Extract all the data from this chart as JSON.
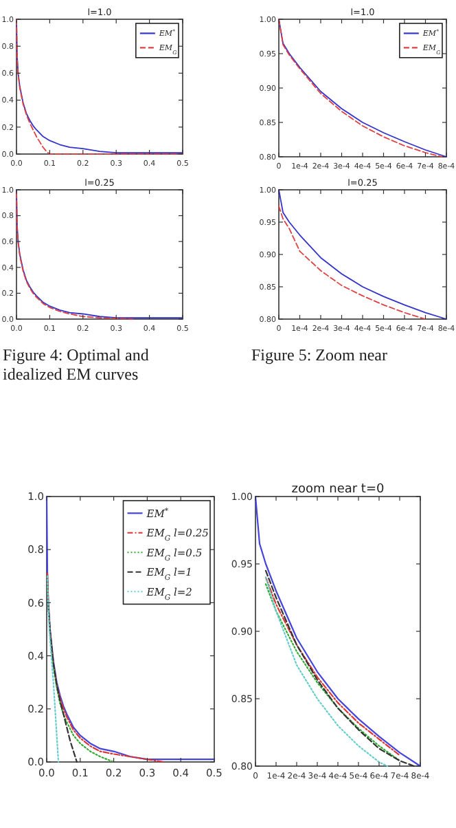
{
  "chart_data": [
    {
      "type": "line",
      "title": "l=1.0",
      "xlim": [
        0,
        0.5
      ],
      "ylim": [
        0,
        1
      ],
      "xticks": [
        {
          "value": 0,
          "label": "0.0"
        },
        0.1,
        0.2,
        0.3,
        0.4,
        0.5
      ],
      "yticks": [
        {
          "value": 0,
          "label": "0.0"
        },
        0.2,
        0.4,
        0.6,
        0.8,
        {
          "value": 1,
          "label": "1.0"
        }
      ],
      "legend": "top right",
      "series": [
        {
          "name": "EM$^{*}$",
          "color": "#3333cc",
          "line_style": "solid",
          "x": [
            0,
            0.002,
            0.005,
            0.01,
            0.02,
            0.03,
            0.04,
            0.05,
            0.06,
            0.08,
            0.1,
            0.13,
            0.16,
            0.2,
            0.25,
            0.3,
            0.4,
            0.5
          ],
          "values": [
            1.0,
            0.72,
            0.6,
            0.5,
            0.38,
            0.3,
            0.25,
            0.21,
            0.18,
            0.13,
            0.1,
            0.07,
            0.05,
            0.04,
            0.02,
            0.01,
            0.01,
            0.01
          ]
        },
        {
          "name": "EM$_{G}$",
          "color": "#e04040",
          "line_style": "dashed",
          "x": [
            0,
            0.002,
            0.005,
            0.01,
            0.02,
            0.03,
            0.04,
            0.05,
            0.06,
            0.07,
            0.08,
            0.09,
            0.1,
            0.5
          ],
          "values": [
            1.0,
            0.71,
            0.59,
            0.49,
            0.37,
            0.29,
            0.23,
            0.18,
            0.13,
            0.09,
            0.05,
            0.02,
            0.0,
            0.0
          ]
        }
      ]
    },
    {
      "type": "line",
      "title": "l=1.0",
      "xlim": [
        0,
        0.0008
      ],
      "ylim": [
        0.8,
        1
      ],
      "xticks": [
        0,
        {
          "value": 0.0001,
          "label": "1e-4"
        },
        {
          "value": 0.0002,
          "label": "2e-4"
        },
        {
          "value": 0.0003,
          "label": "3e-4"
        },
        {
          "value": 0.0004,
          "label": "4e-4"
        },
        {
          "value": 0.0005,
          "label": "5e-4"
        },
        {
          "value": 0.0006,
          "label": "6e-4"
        },
        {
          "value": 0.0007,
          "label": "7e-4"
        },
        {
          "value": 0.0008,
          "label": "8e-4"
        }
      ],
      "yticks": [
        {
          "value": 0.8,
          "label": "0.80"
        },
        0.85,
        {
          "value": 0.9,
          "label": "0.90"
        },
        0.95,
        {
          "value": 1,
          "label": "1.00"
        }
      ],
      "legend": "top right",
      "series": [
        {
          "name": "EM$^{*}$",
          "color": "#3333cc",
          "line_style": "solid",
          "x": [
            0,
            2e-05,
            5e-05,
            0.0001,
            0.0002,
            0.0003,
            0.0004,
            0.0005,
            0.0006,
            0.0007,
            0.0008
          ],
          "values": [
            1.0,
            0.965,
            0.95,
            0.93,
            0.895,
            0.87,
            0.85,
            0.835,
            0.822,
            0.81,
            0.8
          ]
        },
        {
          "name": "EM$_{G}$",
          "color": "#e04040",
          "line_style": "dashed",
          "x": [
            0,
            2e-05,
            5e-05,
            0.0001,
            0.0002,
            0.0003,
            0.0004,
            0.0005,
            0.0006,
            0.0007,
            0.00078
          ],
          "values": [
            1.0,
            0.963,
            0.948,
            0.928,
            0.892,
            0.866,
            0.845,
            0.829,
            0.816,
            0.806,
            0.8
          ]
        }
      ]
    },
    {
      "type": "line",
      "title": "l=0.25",
      "xlim": [
        0,
        0.5
      ],
      "ylim": [
        0,
        1
      ],
      "xticks": [
        {
          "value": 0,
          "label": "0.0"
        },
        0.1,
        0.2,
        0.3,
        0.4,
        0.5
      ],
      "yticks": [
        {
          "value": 0,
          "label": "0.0"
        },
        0.2,
        0.4,
        0.6,
        0.8,
        {
          "value": 1,
          "label": "1.0"
        }
      ],
      "annotations": [
        "Figure 4: Optimal and idealized EM curves"
      ],
      "series": [
        {
          "color": "#3333cc",
          "line_style": "solid",
          "x": [
            0,
            0.002,
            0.005,
            0.01,
            0.02,
            0.03,
            0.04,
            0.05,
            0.06,
            0.08,
            0.1,
            0.13,
            0.16,
            0.2,
            0.25,
            0.3,
            0.4,
            0.5
          ],
          "values": [
            1.0,
            0.72,
            0.6,
            0.5,
            0.38,
            0.3,
            0.25,
            0.21,
            0.18,
            0.13,
            0.1,
            0.07,
            0.05,
            0.04,
            0.02,
            0.01,
            0.01,
            0.01
          ]
        },
        {
          "color": "#e04040",
          "line_style": "dashed",
          "x": [
            0,
            0.002,
            0.005,
            0.01,
            0.02,
            0.03,
            0.04,
            0.05,
            0.06,
            0.08,
            0.1,
            0.13,
            0.16,
            0.2,
            0.25,
            0.35
          ],
          "values": [
            0.98,
            0.71,
            0.59,
            0.49,
            0.37,
            0.29,
            0.24,
            0.2,
            0.17,
            0.12,
            0.09,
            0.06,
            0.04,
            0.02,
            0.01,
            0.0
          ]
        }
      ]
    },
    {
      "type": "line",
      "title": "l=0.25",
      "xlim": [
        0,
        0.0008
      ],
      "ylim": [
        0.8,
        1
      ],
      "xticks": [
        0,
        {
          "value": 0.0001,
          "label": "1e-4"
        },
        {
          "value": 0.0002,
          "label": "2e-4"
        },
        {
          "value": 0.0003,
          "label": "3e-4"
        },
        {
          "value": 0.0004,
          "label": "4e-4"
        },
        {
          "value": 0.0005,
          "label": "5e-4"
        },
        {
          "value": 0.0006,
          "label": "6e-4"
        },
        {
          "value": 0.0007,
          "label": "7e-4"
        },
        {
          "value": 0.0008,
          "label": "8e-4"
        }
      ],
      "yticks": [
        {
          "value": 0.8,
          "label": "0.80"
        },
        0.85,
        {
          "value": 0.9,
          "label": "0.90"
        },
        0.95,
        {
          "value": 1,
          "label": "1.00"
        }
      ],
      "annotations": [
        "Figure 5: Zoom near"
      ],
      "series": [
        {
          "color": "#3333cc",
          "line_style": "solid",
          "x": [
            0,
            2e-05,
            5e-05,
            0.0001,
            0.0002,
            0.0003,
            0.0004,
            0.0005,
            0.0006,
            0.0007,
            0.0008
          ],
          "values": [
            1.0,
            0.965,
            0.95,
            0.93,
            0.895,
            0.87,
            0.85,
            0.835,
            0.822,
            0.81,
            0.8
          ]
        },
        {
          "color": "#e04040",
          "line_style": "dashed",
          "x": [
            0,
            2e-05,
            5e-05,
            0.0001,
            0.0002,
            0.0003,
            0.0004,
            0.0005,
            0.0006,
            0.0007
          ],
          "values": [
            0.975,
            0.955,
            0.94,
            0.905,
            0.875,
            0.852,
            0.836,
            0.822,
            0.81,
            0.8
          ]
        }
      ]
    },
    {
      "type": "line",
      "xlim": [
        0,
        0.5
      ],
      "ylim": [
        0,
        1
      ],
      "xticks": [
        {
          "value": 0,
          "label": "0.0"
        },
        0.1,
        0.2,
        0.3,
        0.4,
        0.5
      ],
      "yticks": [
        {
          "value": 0,
          "label": "0.0"
        },
        0.2,
        0.4,
        0.6,
        0.8,
        {
          "value": 1,
          "label": "1.0"
        }
      ],
      "legend": "top right",
      "series": [
        {
          "name": "EM$^{*}$",
          "color": "#4444dd",
          "line_style": "solid",
          "x": [
            0,
            0.002,
            0.005,
            0.01,
            0.02,
            0.03,
            0.04,
            0.05,
            0.06,
            0.08,
            0.1,
            0.13,
            0.16,
            0.2,
            0.25,
            0.3,
            0.4,
            0.5
          ],
          "values": [
            1.0,
            0.72,
            0.6,
            0.5,
            0.38,
            0.3,
            0.25,
            0.21,
            0.18,
            0.13,
            0.1,
            0.07,
            0.05,
            0.04,
            0.02,
            0.01,
            0.01,
            0.01
          ]
        },
        {
          "name": "EM$_{G}$ l=0.25",
          "color": "#dd3333",
          "line_style": "dashdot",
          "x": [
            0.002,
            0.005,
            0.01,
            0.02,
            0.03,
            0.04,
            0.05,
            0.06,
            0.08,
            0.1,
            0.13,
            0.16,
            0.2,
            0.25,
            0.3,
            0.35
          ],
          "values": [
            0.71,
            0.59,
            0.49,
            0.37,
            0.29,
            0.24,
            0.2,
            0.17,
            0.12,
            0.09,
            0.06,
            0.04,
            0.03,
            0.02,
            0.01,
            0.0
          ]
        },
        {
          "name": "EM$_{G}$ l=0.5",
          "color": "#33aa33",
          "line_style": "dotted",
          "x": [
            0.002,
            0.005,
            0.01,
            0.02,
            0.03,
            0.04,
            0.05,
            0.06,
            0.08,
            0.1,
            0.13,
            0.16,
            0.2
          ],
          "values": [
            0.7,
            0.58,
            0.48,
            0.36,
            0.28,
            0.22,
            0.18,
            0.15,
            0.1,
            0.07,
            0.04,
            0.02,
            0.0
          ]
        },
        {
          "name": "EM$_{G}$ l=1",
          "color": "#333333",
          "line_style": "dashed",
          "x": [
            0.005,
            0.01,
            0.02,
            0.03,
            0.04,
            0.05,
            0.06,
            0.07,
            0.08,
            0.09
          ],
          "values": [
            0.59,
            0.49,
            0.37,
            0.29,
            0.23,
            0.18,
            0.13,
            0.08,
            0.04,
            0.0
          ]
        },
        {
          "name": "EM$_{G}$ l=2",
          "color": "#66cccc",
          "line_style": "dotted",
          "x": [
            0.002,
            0.005,
            0.01,
            0.02,
            0.03,
            0.035
          ],
          "values": [
            0.7,
            0.57,
            0.46,
            0.3,
            0.1,
            0.0
          ]
        }
      ]
    },
    {
      "type": "line",
      "title": "zoom near t=0",
      "xlim": [
        0,
        0.0008
      ],
      "ylim": [
        0.8,
        1
      ],
      "xticks": [
        0,
        {
          "value": 0.0001,
          "label": "1e-4"
        },
        {
          "value": 0.0002,
          "label": "2e-4"
        },
        {
          "value": 0.0003,
          "label": "3e-4"
        },
        {
          "value": 0.0004,
          "label": "4e-4"
        },
        {
          "value": 0.0005,
          "label": "5e-4"
        },
        {
          "value": 0.0006,
          "label": "6e-4"
        },
        {
          "value": 0.0007,
          "label": "7e-4"
        },
        {
          "value": 0.0008,
          "label": "8e-4"
        }
      ],
      "yticks": [
        {
          "value": 0.8,
          "label": "0.80"
        },
        0.85,
        {
          "value": 0.9,
          "label": "0.90"
        },
        0.95,
        {
          "value": 1,
          "label": "1.00"
        }
      ],
      "series": [
        {
          "color": "#4444dd",
          "line_style": "solid",
          "x": [
            0,
            2e-05,
            5e-05,
            0.0001,
            0.0002,
            0.0003,
            0.0004,
            0.0005,
            0.0006,
            0.0007,
            0.0008
          ],
          "values": [
            1.0,
            0.965,
            0.95,
            0.93,
            0.895,
            0.87,
            0.85,
            0.835,
            0.822,
            0.81,
            0.8
          ]
        },
        {
          "color": "#dd3333",
          "line_style": "dashdot",
          "x": [
            5e-05,
            0.0001,
            0.0002,
            0.0003,
            0.0004,
            0.0005,
            0.0006,
            0.0007
          ],
          "values": [
            0.94,
            0.92,
            0.89,
            0.866,
            0.847,
            0.832,
            0.82,
            0.808
          ]
        },
        {
          "color": "#33aa33",
          "line_style": "dotted",
          "x": [
            5e-05,
            0.0001,
            0.0002,
            0.0003,
            0.0004,
            0.0005,
            0.0006,
            0.0007
          ],
          "values": [
            0.935,
            0.915,
            0.885,
            0.862,
            0.843,
            0.828,
            0.815,
            0.804
          ]
        },
        {
          "color": "#333333",
          "line_style": "dashed",
          "x": [
            5e-05,
            0.0001,
            0.0002,
            0.0003,
            0.0004,
            0.0005,
            0.0006,
            0.0007,
            0.00077
          ],
          "values": [
            0.945,
            0.925,
            0.89,
            0.864,
            0.843,
            0.827,
            0.813,
            0.804,
            0.8
          ]
        },
        {
          "color": "#66cccc",
          "line_style": "dotted",
          "x": [
            5e-05,
            0.0001,
            0.0002,
            0.0003,
            0.0004,
            0.0005,
            0.0006,
            0.00064
          ],
          "values": [
            0.94,
            0.915,
            0.875,
            0.85,
            0.83,
            0.815,
            0.803,
            0.8
          ]
        }
      ]
    }
  ]
}
